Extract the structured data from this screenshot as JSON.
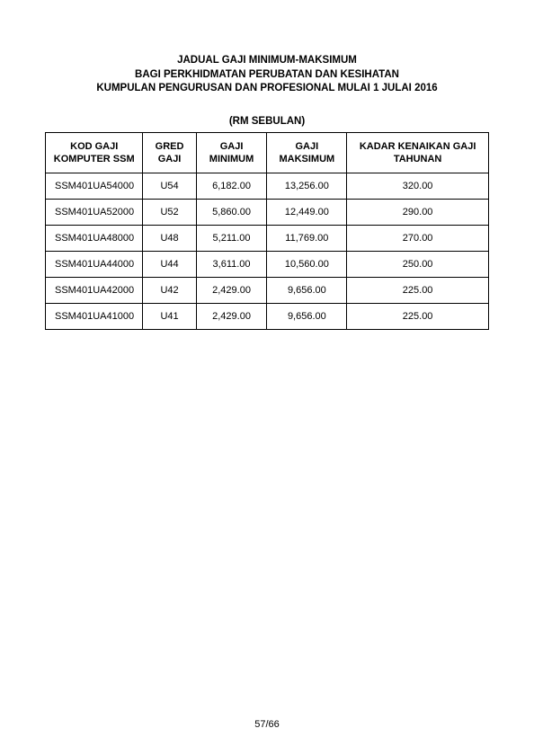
{
  "title": {
    "line1": "JADUAL GAJI MINIMUM-MAKSIMUM",
    "line2": "BAGI PERKHIDMATAN PERUBATAN DAN KESIHATAN",
    "line3": "KUMPULAN PENGURUSAN DAN PROFESIONAL MULAI 1 JULAI 2016"
  },
  "subtitle": "(RM SEBULAN)",
  "table": {
    "type": "table",
    "border_color": "#000000",
    "background_color": "#ffffff",
    "header_fontsize": 11,
    "cell_fontsize": 11,
    "columns": [
      {
        "label": "KOD GAJI KOMPUTER SSM",
        "align": "left",
        "width_pct": 22
      },
      {
        "label": "GRED GAJI",
        "align": "center",
        "width_pct": 12
      },
      {
        "label": "GAJI MINIMUM",
        "align": "center",
        "width_pct": 16
      },
      {
        "label": "GAJI MAKSIMUM",
        "align": "center",
        "width_pct": 18
      },
      {
        "label": "KADAR KENAIKAN GAJI TAHUNAN",
        "align": "center",
        "width_pct": 32
      }
    ],
    "rows": [
      [
        "SSM401UA54000",
        "U54",
        "6,182.00",
        "13,256.00",
        "320.00"
      ],
      [
        "SSM401UA52000",
        "U52",
        "5,860.00",
        "12,449.00",
        "290.00"
      ],
      [
        "SSM401UA48000",
        "U48",
        "5,211.00",
        "11,769.00",
        "270.00"
      ],
      [
        "SSM401UA44000",
        "U44",
        "3,611.00",
        "10,560.00",
        "250.00"
      ],
      [
        "SSM401UA42000",
        "U42",
        "2,429.00",
        "9,656.00",
        "225.00"
      ],
      [
        "SSM401UA41000",
        "U41",
        "2,429.00",
        "9,656.00",
        "225.00"
      ]
    ]
  },
  "page_number": "57/66"
}
